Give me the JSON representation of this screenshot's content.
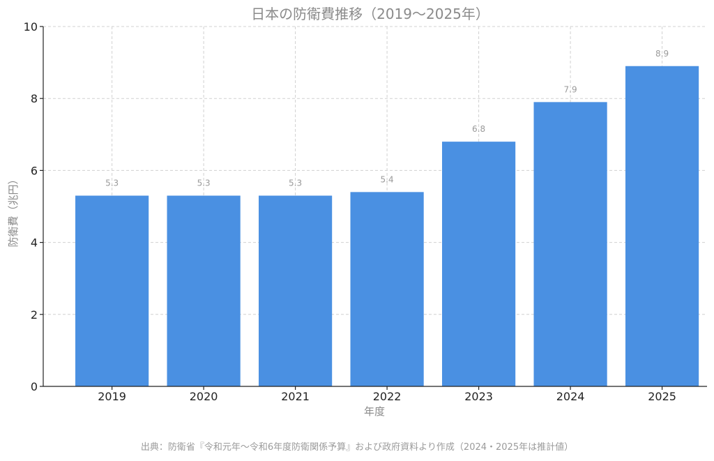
{
  "chart_data": {
    "type": "bar",
    "title": "日本の防衛費推移（2019〜2025年）",
    "xlabel": "年度",
    "ylabel": "防衛費（兆円）",
    "categories": [
      "2019",
      "2020",
      "2021",
      "2022",
      "2023",
      "2024",
      "2025"
    ],
    "values": [
      5.3,
      5.3,
      5.3,
      5.4,
      6.8,
      7.9,
      8.9
    ],
    "data_labels": [
      "5.3",
      "5.3",
      "5.3",
      "5.4",
      "6.8",
      "7.9",
      "8.9"
    ],
    "ylim": [
      0,
      10
    ],
    "yticks": [
      "0",
      "2",
      "4",
      "6",
      "8",
      "10"
    ],
    "bar_color": "#4a90e2",
    "grid": true,
    "source": "出典：防衛省『令和元年〜令和6年度防衛関係予算』および政府資料より作成（2024・2025年は推計値）"
  }
}
